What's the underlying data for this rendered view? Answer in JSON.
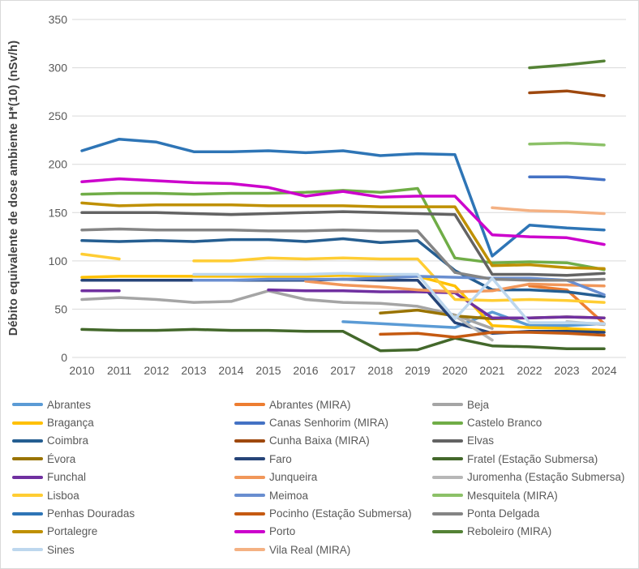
{
  "chart_data": {
    "type": "line",
    "title": "",
    "ylabel": "Débito equivalente de dose ambiente H*(10) (nSv/h)",
    "xlabel": "",
    "ylim": [
      0,
      350
    ],
    "y_ticks": [
      0,
      50,
      100,
      150,
      200,
      250,
      300,
      350
    ],
    "grid": true,
    "legend_position": "bottom",
    "x": [
      2010,
      2011,
      2012,
      2013,
      2014,
      2015,
      2016,
      2017,
      2018,
      2019,
      2020,
      2021,
      2022,
      2023,
      2024
    ],
    "series": [
      {
        "name": "Abrantes",
        "color": "#5B9BD5",
        "values": [
          null,
          null,
          null,
          null,
          null,
          null,
          null,
          37,
          35,
          33,
          31,
          47,
          33,
          33,
          35
        ]
      },
      {
        "name": "Abrantes (MIRA)",
        "color": "#ED7D31",
        "values": [
          null,
          null,
          null,
          null,
          null,
          null,
          null,
          null,
          null,
          null,
          null,
          null,
          74,
          70,
          35
        ]
      },
      {
        "name": "Beja",
        "color": "#A5A5A5",
        "values": [
          60,
          62,
          60,
          57,
          58,
          69,
          60,
          57,
          56,
          53,
          44,
          30,
          null,
          null,
          null
        ]
      },
      {
        "name": "Bragança",
        "color": "#FFC000",
        "values": [
          83,
          84,
          84,
          84,
          84,
          84,
          84,
          85,
          84,
          84,
          74,
          33,
          31,
          30,
          28
        ]
      },
      {
        "name": "Canas Senhorim (MIRA)",
        "color": "#4472C4",
        "values": [
          null,
          null,
          null,
          null,
          null,
          null,
          null,
          null,
          null,
          null,
          null,
          null,
          187,
          187,
          184
        ]
      },
      {
        "name": "Castelo Branco",
        "color": "#70AD47",
        "values": [
          169,
          170,
          170,
          169,
          170,
          170,
          171,
          173,
          171,
          175,
          103,
          98,
          99,
          98,
          91
        ]
      },
      {
        "name": "Coimbra",
        "color": "#255E91",
        "values": [
          121,
          120,
          121,
          120,
          122,
          122,
          120,
          123,
          119,
          121,
          90,
          70,
          70,
          68,
          63
        ]
      },
      {
        "name": "Cunha Baixa (MIRA)",
        "color": "#9E480E",
        "values": [
          null,
          null,
          null,
          null,
          null,
          null,
          null,
          null,
          null,
          null,
          null,
          null,
          274,
          276,
          271
        ]
      },
      {
        "name": "Elvas",
        "color": "#636363",
        "values": [
          150,
          150,
          150,
          149,
          148,
          149,
          150,
          151,
          150,
          149,
          148,
          86,
          86,
          85,
          87
        ]
      },
      {
        "name": "Évora",
        "color": "#997300",
        "values": [
          null,
          null,
          null,
          null,
          null,
          null,
          null,
          null,
          46,
          49,
          43,
          40,
          41,
          42,
          41
        ]
      },
      {
        "name": "Faro",
        "color": "#264478",
        "values": [
          80,
          80,
          80,
          80,
          80,
          80,
          80,
          81,
          80,
          80,
          36,
          25,
          27,
          27,
          26
        ]
      },
      {
        "name": "Fratel (Estação Submersa)",
        "color": "#43682B",
        "values": [
          29,
          28,
          28,
          29,
          28,
          28,
          27,
          27,
          7,
          8,
          20,
          12,
          11,
          9,
          9
        ]
      },
      {
        "name": "Funchal",
        "color": "#7030A0",
        "values": [
          69,
          69,
          null,
          null,
          null,
          70,
          69,
          69,
          68,
          68,
          67,
          41,
          41,
          42,
          41
        ]
      },
      {
        "name": "Junqueira",
        "color": "#F1975A",
        "values": [
          null,
          null,
          null,
          null,
          null,
          null,
          79,
          75,
          73,
          70,
          68,
          69,
          76,
          75,
          74
        ]
      },
      {
        "name": "Juromenha (Estação Submersa)",
        "color": "#B7B7B7",
        "values": [
          null,
          null,
          null,
          null,
          null,
          null,
          null,
          null,
          null,
          null,
          43,
          18,
          null,
          37,
          34
        ]
      },
      {
        "name": "Lisboa",
        "color": "#FFCD33",
        "values": [
          107,
          102,
          null,
          100,
          100,
          103,
          102,
          103,
          102,
          102,
          60,
          59,
          60,
          59,
          57
        ]
      },
      {
        "name": "Meimoa",
        "color": "#698ED0",
        "values": [
          null,
          null,
          null,
          80,
          80,
          81,
          81,
          81,
          82,
          84,
          83,
          82,
          82,
          80,
          65
        ]
      },
      {
        "name": "Mesquitela (MIRA)",
        "color": "#8CC168",
        "values": [
          null,
          null,
          null,
          null,
          null,
          null,
          null,
          null,
          null,
          null,
          null,
          null,
          221,
          222,
          220
        ]
      },
      {
        "name": "Penhas Douradas",
        "color": "#2E75B6",
        "values": [
          214,
          226,
          223,
          213,
          213,
          214,
          212,
          214,
          209,
          211,
          210,
          105,
          137,
          134,
          132
        ]
      },
      {
        "name": "Pocinho (Estação Submersa)",
        "color": "#C55A11",
        "values": [
          null,
          null,
          null,
          null,
          null,
          null,
          null,
          null,
          24,
          25,
          21,
          26,
          26,
          25,
          23
        ]
      },
      {
        "name": "Ponta Delgada",
        "color": "#848484",
        "values": [
          132,
          133,
          132,
          132,
          132,
          131,
          131,
          132,
          131,
          131,
          88,
          81,
          80,
          80,
          81
        ]
      },
      {
        "name": "Portalegre",
        "color": "#BF9000",
        "values": [
          160,
          157,
          158,
          158,
          158,
          157,
          157,
          157,
          156,
          156,
          156,
          95,
          96,
          93,
          92
        ]
      },
      {
        "name": "Porto",
        "color": "#CC00CC",
        "values": [
          182,
          185,
          183,
          181,
          180,
          176,
          167,
          172,
          166,
          167,
          167,
          127,
          125,
          124,
          117
        ]
      },
      {
        "name": "Reboleiro (MIRA)",
        "color": "#548235",
        "values": [
          null,
          null,
          null,
          null,
          null,
          null,
          null,
          null,
          null,
          null,
          null,
          null,
          300,
          303,
          307
        ]
      },
      {
        "name": "Sines",
        "color": "#BDD7EE",
        "values": [
          null,
          null,
          null,
          86,
          86,
          86,
          86,
          87,
          86,
          86,
          40,
          82,
          36,
          36,
          35
        ]
      },
      {
        "name": "Vila Real (MIRA)",
        "color": "#F4B183",
        "values": [
          null,
          null,
          null,
          null,
          null,
          null,
          null,
          null,
          null,
          null,
          null,
          155,
          152,
          151,
          149
        ]
      }
    ],
    "style": {
      "gridline_color": "#D9D9D9",
      "tick_label_color": "#595959",
      "axis_title_color": "#404040",
      "legend_text_color": "#595959",
      "line_width": 3.5
    }
  }
}
